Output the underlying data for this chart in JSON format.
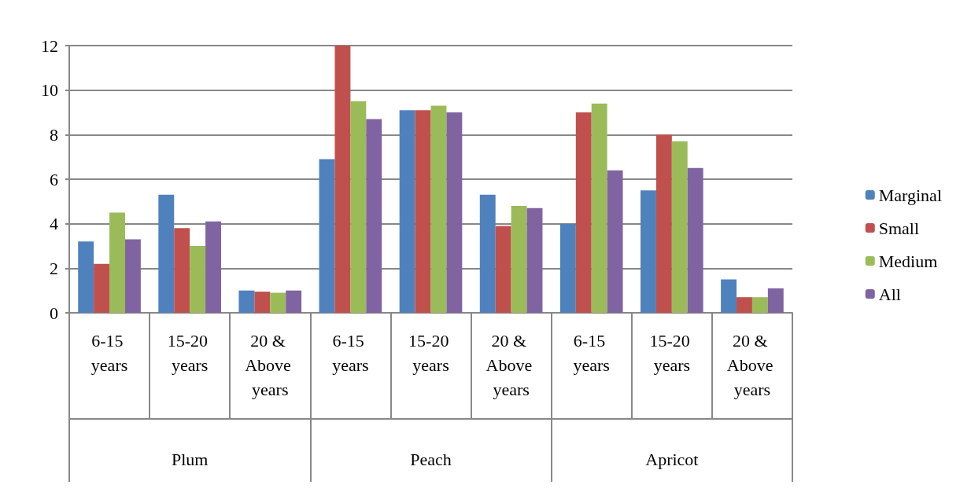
{
  "chart_data": {
    "type": "bar",
    "categories": [
      "6-15 years",
      "15-20 years",
      "20 & Above years",
      "6-15 years",
      "15-20 years",
      "20 & Above years",
      "6-15 years",
      "15-20 years",
      "20 & Above years"
    ],
    "annotations": [
      "Plum",
      "Peach",
      "Apricot"
    ],
    "series": [
      {
        "name": "Marginal",
        "color": "#4f81bd",
        "values": [
          3.2,
          5.3,
          1.0,
          6.9,
          9.1,
          5.3,
          4.0,
          5.5,
          1.5
        ]
      },
      {
        "name": "Small",
        "color": "#c0504d",
        "values": [
          2.2,
          3.8,
          0.95,
          12.0,
          9.1,
          3.9,
          9.0,
          8.0,
          0.7
        ]
      },
      {
        "name": "Medium",
        "color": "#9bbb59",
        "values": [
          4.5,
          3.0,
          0.9,
          9.5,
          9.3,
          4.8,
          9.4,
          7.7,
          0.7
        ]
      },
      {
        "name": "All",
        "color": "#8064a2",
        "values": [
          3.3,
          4.1,
          1.0,
          8.7,
          9.0,
          4.7,
          6.4,
          6.5,
          1.1
        ]
      }
    ],
    "ylim": [
      0,
      12
    ],
    "yticks": [
      0,
      2,
      4,
      6,
      8,
      10,
      12
    ],
    "grid": "y",
    "legend": "right"
  }
}
